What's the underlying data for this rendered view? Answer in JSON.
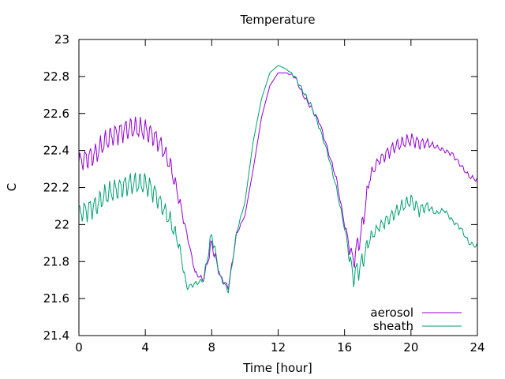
{
  "chart_data": {
    "type": "line",
    "title": "Temperature",
    "xlabel": "Time [hour]",
    "ylabel": "C",
    "xlim": [
      0,
      24
    ],
    "ylim": [
      21.4,
      23
    ],
    "x_ticks": [
      0,
      4,
      8,
      12,
      16,
      20,
      24
    ],
    "x_tick_labels": [
      "0",
      "4",
      "8",
      "12",
      "16",
      "20",
      "24"
    ],
    "y_ticks": [
      21.4,
      21.6,
      21.8,
      22,
      22.2,
      22.4,
      22.6,
      22.8,
      23
    ],
    "y_tick_labels": [
      "21.4",
      "21.6",
      "21.8",
      "22",
      "22.2",
      "22.4",
      "22.6",
      "22.8",
      "23"
    ],
    "grid": false,
    "legend_position": "bottom-right",
    "series": [
      {
        "name": "aerosol",
        "color": "#9400d3",
        "x": [
          0,
          0.5,
          1,
          1.5,
          2,
          2.5,
          3,
          3.5,
          4,
          4.5,
          5,
          5.5,
          6,
          6.5,
          7,
          7.5,
          8,
          8.5,
          9,
          9.5,
          10,
          10.5,
          11,
          11.5,
          12,
          12.5,
          13,
          13.5,
          14,
          14.5,
          15,
          15.5,
          16,
          16.5,
          17,
          17.5,
          18,
          18.5,
          19,
          19.5,
          20,
          20.5,
          21,
          21.5,
          22,
          22.5,
          23,
          23.5,
          24
        ],
        "y": [
          22.34,
          22.36,
          22.38,
          22.44,
          22.48,
          22.5,
          22.52,
          22.52,
          22.51,
          22.48,
          22.42,
          22.32,
          22.15,
          21.95,
          21.74,
          21.7,
          21.9,
          21.72,
          21.66,
          21.95,
          22.05,
          22.3,
          22.58,
          22.75,
          22.82,
          22.82,
          22.8,
          22.7,
          22.63,
          22.55,
          22.4,
          22.25,
          22.0,
          21.8,
          21.95,
          22.25,
          22.34,
          22.38,
          22.42,
          22.44,
          22.46,
          22.44,
          22.44,
          22.42,
          22.4,
          22.38,
          22.32,
          22.26,
          22.24
        ],
        "amplitude": [
          0.04,
          0.05,
          0.05,
          0.05,
          0.05,
          0.05,
          0.05,
          0.05,
          0.05,
          0.05,
          0.04,
          0.04,
          0.03,
          0.01,
          0.01,
          0.01,
          0.03,
          0.01,
          0.01,
          0.01,
          0.0,
          0.0,
          0.0,
          0.0,
          0.0,
          0.0,
          0.01,
          0.01,
          0.01,
          0.01,
          0.01,
          0.01,
          0.01,
          0.05,
          0.05,
          0.03,
          0.02,
          0.03,
          0.03,
          0.03,
          0.03,
          0.03,
          0.02,
          0.01,
          0.01,
          0.01,
          0.01,
          0.01,
          0.01
        ]
      },
      {
        "name": "sheath",
        "color": "#009e73",
        "x": [
          0,
          0.5,
          1,
          1.5,
          2,
          2.5,
          3,
          3.5,
          4,
          4.5,
          5,
          5.5,
          6,
          6.5,
          7,
          7.5,
          8,
          8.5,
          9,
          9.5,
          10,
          10.5,
          11,
          11.5,
          12,
          12.5,
          13,
          13.5,
          14,
          14.5,
          15,
          15.5,
          16,
          16.5,
          17,
          17.5,
          18,
          18.5,
          19,
          19.5,
          20,
          20.5,
          21,
          21.5,
          22,
          22.5,
          23,
          23.5,
          24
        ],
        "y": [
          22.06,
          22.08,
          22.1,
          22.15,
          22.18,
          22.2,
          22.22,
          22.22,
          22.22,
          22.18,
          22.1,
          22.02,
          21.9,
          21.66,
          21.68,
          21.7,
          21.95,
          21.72,
          21.64,
          21.96,
          22.12,
          22.45,
          22.68,
          22.82,
          22.86,
          22.84,
          22.8,
          22.72,
          22.64,
          22.52,
          22.38,
          22.2,
          21.98,
          21.72,
          21.78,
          21.92,
          21.98,
          22.02,
          22.06,
          22.1,
          22.13,
          22.08,
          22.1,
          22.06,
          22.08,
          22.02,
          21.98,
          21.9,
          21.88
        ],
        "amplitude": [
          0.04,
          0.05,
          0.05,
          0.05,
          0.05,
          0.05,
          0.05,
          0.05,
          0.05,
          0.05,
          0.04,
          0.04,
          0.03,
          0.01,
          0.01,
          0.01,
          0.03,
          0.01,
          0.01,
          0.01,
          0.0,
          0.0,
          0.0,
          0.0,
          0.0,
          0.0,
          0.01,
          0.01,
          0.01,
          0.01,
          0.01,
          0.01,
          0.01,
          0.05,
          0.05,
          0.03,
          0.02,
          0.03,
          0.03,
          0.03,
          0.03,
          0.03,
          0.02,
          0.01,
          0.01,
          0.01,
          0.01,
          0.01,
          0.01
        ]
      }
    ]
  }
}
